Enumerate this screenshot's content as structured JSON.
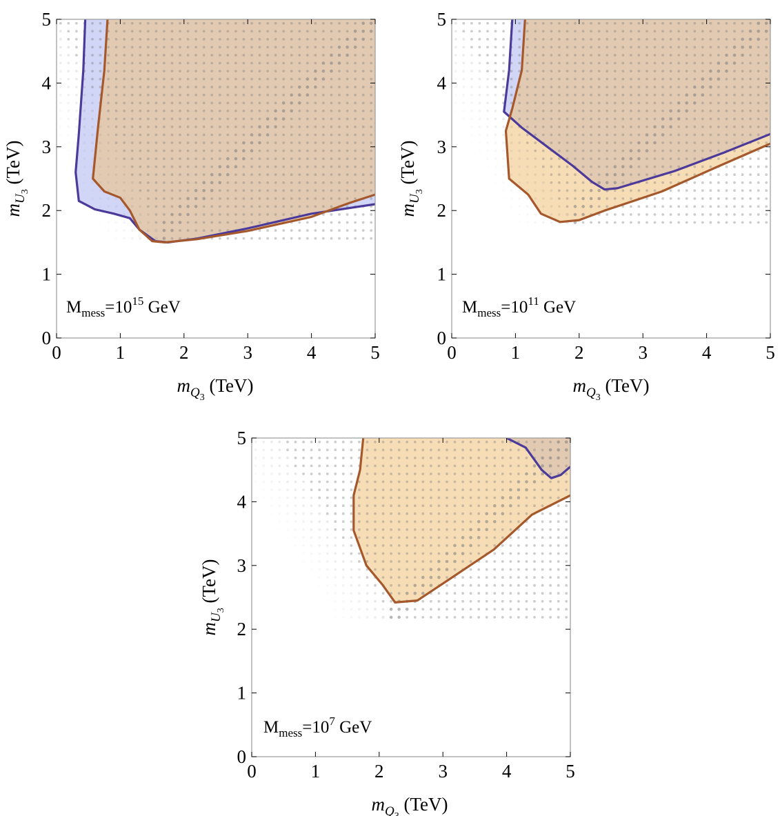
{
  "figure": {
    "background": "#ffffff"
  },
  "colors": {
    "blue_fill": "#9aa2ea",
    "blue_line": "#4b3a9a",
    "orange_fill": "#f0c17a",
    "orange_line": "#a5582b",
    "dots": "#7c7c7c",
    "frame": "#9a9a9a"
  },
  "chart_data": [
    {
      "type": "scatter",
      "panel": "top-left",
      "annotation": {
        "base": "M",
        "sub": "mess",
        "mid": "=10",
        "sup": "15",
        "tail": " GeV"
      },
      "xlabel": {
        "var": "m",
        "sub": "Q",
        "subsub": "3",
        "units": " (TeV)"
      },
      "ylabel": {
        "var": "m",
        "sub": "U",
        "subsub": "3",
        "units": " (TeV)"
      },
      "xlim": [
        0,
        5
      ],
      "ylim": [
        0,
        5
      ],
      "xticks": [
        "0",
        "1",
        "2",
        "3",
        "4",
        "5"
      ],
      "yticks": [
        "0",
        "1",
        "2",
        "3",
        "4",
        "5"
      ],
      "grid": false,
      "dot_region": {
        "x_edge_at_top": 0.0,
        "x_edge_at_bottom": 1.7,
        "y_bottom": 1.48
      },
      "blue_contour": [
        [
          0.45,
          5
        ],
        [
          0.42,
          4.2
        ],
        [
          0.35,
          3.2
        ],
        [
          0.3,
          2.6
        ],
        [
          0.35,
          2.15
        ],
        [
          0.6,
          2.02
        ],
        [
          0.9,
          1.95
        ],
        [
          1.15,
          1.88
        ],
        [
          1.3,
          1.7
        ],
        [
          1.55,
          1.52
        ],
        [
          1.75,
          1.5
        ],
        [
          2.2,
          1.56
        ],
        [
          3,
          1.72
        ],
        [
          4,
          1.95
        ],
        [
          5,
          2.1
        ]
      ],
      "orange_contour": [
        [
          0.8,
          5
        ],
        [
          0.75,
          4.2
        ],
        [
          0.65,
          3.3
        ],
        [
          0.57,
          2.5
        ],
        [
          0.75,
          2.3
        ],
        [
          1,
          2.2
        ],
        [
          1.15,
          2.0
        ],
        [
          1.3,
          1.7
        ],
        [
          1.5,
          1.52
        ],
        [
          1.7,
          1.5
        ],
        [
          2.2,
          1.55
        ],
        [
          3,
          1.68
        ],
        [
          4,
          1.9
        ],
        [
          4.6,
          2.12
        ],
        [
          5,
          2.25
        ]
      ]
    },
    {
      "type": "scatter",
      "panel": "top-right",
      "annotation": {
        "base": "M",
        "sub": "mess",
        "mid": "=10",
        "sup": "11",
        "tail": " GeV"
      },
      "xlabel": {
        "var": "m",
        "sub": "Q",
        "subsub": "3",
        "units": " (TeV)"
      },
      "ylabel": {
        "var": "m",
        "sub": "U",
        "subsub": "3",
        "units": " (TeV)"
      },
      "xlim": [
        0,
        5
      ],
      "ylim": [
        0,
        5
      ],
      "xticks": [
        "0",
        "1",
        "2",
        "3",
        "4",
        "5"
      ],
      "yticks": [
        "0",
        "1",
        "2",
        "3",
        "4",
        "5"
      ],
      "grid": false,
      "dot_region": {
        "x_edge_at_top": 0.05,
        "x_edge_at_bottom": 1.95,
        "y_bottom": 1.72
      },
      "blue_contour": [
        [
          0.95,
          5
        ],
        [
          0.9,
          4.2
        ],
        [
          0.82,
          3.55
        ],
        [
          1.1,
          3.3
        ],
        [
          1.5,
          3.0
        ],
        [
          1.9,
          2.7
        ],
        [
          2.2,
          2.45
        ],
        [
          2.4,
          2.33
        ],
        [
          2.6,
          2.35
        ],
        [
          3.5,
          2.62
        ],
        [
          4.3,
          2.92
        ],
        [
          5,
          3.2
        ]
      ],
      "orange_contour": [
        [
          1.15,
          5
        ],
        [
          1.1,
          4.2
        ],
        [
          0.95,
          3.6
        ],
        [
          0.85,
          3.25
        ],
        [
          0.9,
          2.5
        ],
        [
          1.2,
          2.25
        ],
        [
          1.4,
          1.95
        ],
        [
          1.7,
          1.82
        ],
        [
          2,
          1.85
        ],
        [
          2.4,
          2.0
        ],
        [
          3.3,
          2.3
        ],
        [
          4.2,
          2.7
        ],
        [
          5,
          3.05
        ]
      ]
    },
    {
      "type": "scatter",
      "panel": "bottom",
      "annotation": {
        "base": "M",
        "sub": "mess",
        "mid": "=10",
        "sup": "7",
        "tail": " GeV"
      },
      "xlabel": {
        "var": "m",
        "sub": "Q",
        "subsub": "3",
        "units": " (TeV)"
      },
      "ylabel": {
        "var": "m",
        "sub": "U",
        "subsub": "3",
        "units": " (TeV)"
      },
      "xlim": [
        0,
        5
      ],
      "ylim": [
        0,
        5
      ],
      "xticks": [
        "0",
        "1",
        "2",
        "3",
        "4",
        "5"
      ],
      "yticks": [
        "0",
        "1",
        "2",
        "3",
        "4",
        "5"
      ],
      "grid": false,
      "dot_region": {
        "x_edge_at_top": 0.4,
        "x_edge_at_bottom": 2.25,
        "y_bottom": 2.08
      },
      "blue_contour": [
        [
          4.0,
          5
        ],
        [
          4.3,
          4.85
        ],
        [
          4.55,
          4.5
        ],
        [
          4.7,
          4.37
        ],
        [
          4.85,
          4.42
        ],
        [
          5,
          4.55
        ]
      ],
      "orange_contour": [
        [
          1.75,
          5
        ],
        [
          1.7,
          4.5
        ],
        [
          1.6,
          4.1
        ],
        [
          1.6,
          3.55
        ],
        [
          1.8,
          3.0
        ],
        [
          2.05,
          2.7
        ],
        [
          2.25,
          2.42
        ],
        [
          2.6,
          2.45
        ],
        [
          3.2,
          2.85
        ],
        [
          3.8,
          3.25
        ],
        [
          4.4,
          3.8
        ],
        [
          5,
          4.1
        ]
      ]
    }
  ]
}
